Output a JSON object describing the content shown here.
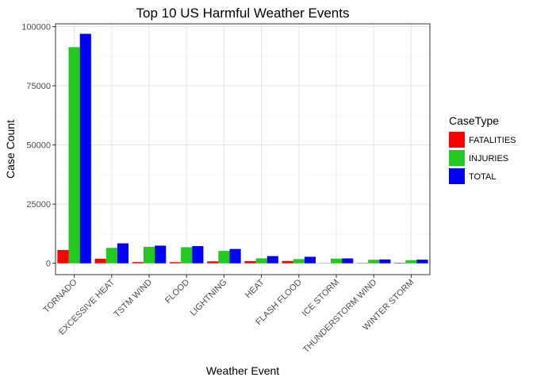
{
  "chart_data": {
    "type": "bar",
    "title": "Top 10 US Harmful Weather Events",
    "xlabel": "Weather Event",
    "ylabel": "Case Count",
    "categories": [
      "TORNADO",
      "EXCESSIVE HEAT",
      "TSTM WIND",
      "FLOOD",
      "LIGHTNING",
      "HEAT",
      "FLASH FLOOD",
      "ICE STORM",
      "THUNDERSTORM WIND",
      "WINTER STORM"
    ],
    "series": [
      {
        "name": "FATALITIES",
        "color": "#ff0000",
        "values": [
          5633,
          1903,
          504,
          470,
          816,
          937,
          978,
          89,
          133,
          206
        ]
      },
      {
        "name": "INJURIES",
        "color": "#22c91e",
        "values": [
          91346,
          6525,
          6957,
          6789,
          5230,
          2100,
          1777,
          1975,
          1488,
          1321
        ]
      },
      {
        "name": "TOTAL",
        "color": "#0000ff",
        "values": [
          96979,
          8428,
          7461,
          7259,
          6046,
          3037,
          2755,
          2064,
          1621,
          1527
        ]
      }
    ],
    "ylim": [
      -4800,
      101200
    ],
    "yticks": [
      0,
      25000,
      50000,
      75000,
      100000
    ],
    "grid": true,
    "legend": {
      "title": "CaseType",
      "position": "right"
    }
  }
}
